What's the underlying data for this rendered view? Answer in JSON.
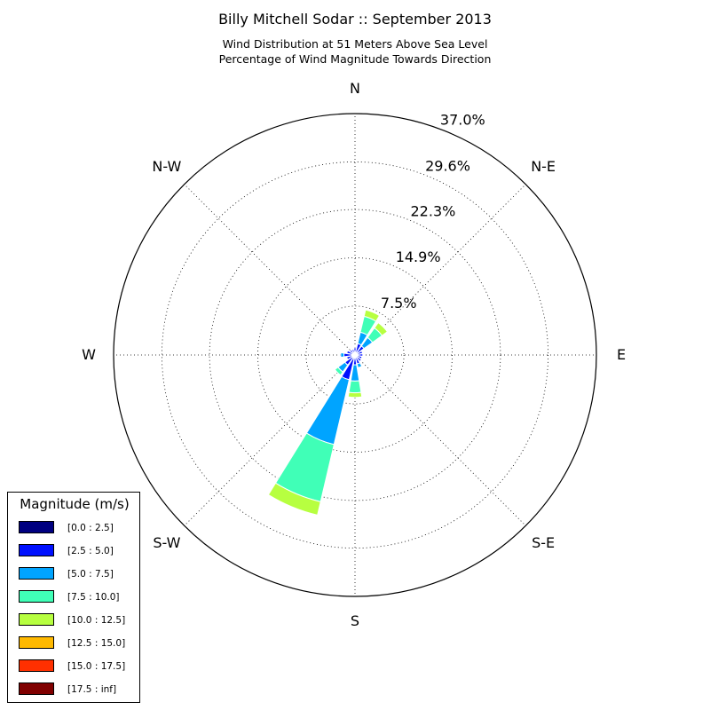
{
  "title": "Billy Mitchell Sodar :: September 2013",
  "subtitle_line1": "Wind Distribution at 51 Meters Above Sea Level",
  "subtitle_line2": "Percentage of Wind Magnitude Towards Direction",
  "chart_data": {
    "type": "windrose",
    "directions": [
      "N",
      "NNE",
      "NE",
      "ENE",
      "E",
      "ESE",
      "SE",
      "SSE",
      "S",
      "SSW",
      "SW",
      "WSW",
      "W",
      "WNW",
      "NW",
      "NNW"
    ],
    "direction_labels": [
      "N",
      "N-E",
      "E",
      "S-E",
      "S",
      "S-W",
      "W",
      "N-W"
    ],
    "radial_ticks": [
      "7.5%",
      "14.9%",
      "22.3%",
      "29.6%",
      "37.0%"
    ],
    "radial_tick_values": [
      7.5,
      14.9,
      22.3,
      29.6,
      37.0
    ],
    "rmax": 37.0,
    "grid": true,
    "bins": [
      "[0.0 : 2.5]",
      "[2.5 : 5.0]",
      "[5.0 : 7.5]",
      "[7.5 : 10.0]",
      "[10.0 : 12.5]",
      "[12.5 : 15.0]",
      "[15.0 : 17.5]",
      "[17.5 : inf]"
    ],
    "bin_colors": [
      "#000080",
      "#0010ff",
      "#00a4ff",
      "#40ffb7",
      "#b7ff40",
      "#ffb900",
      "#ff3000",
      "#800000"
    ],
    "series": [
      {
        "direction": "N",
        "values": [
          0.3,
          0.8,
          0.0,
          0.0,
          0.0,
          0.0,
          0.0,
          0.0
        ]
      },
      {
        "direction": "NNE",
        "values": [
          0.4,
          1.4,
          1.8,
          2.5,
          1.0,
          0.0,
          0.0,
          0.0
        ]
      },
      {
        "direction": "NE",
        "values": [
          0.4,
          1.3,
          1.6,
          1.8,
          1.0,
          0.0,
          0.0,
          0.0
        ]
      },
      {
        "direction": "ENE",
        "values": [
          0.4,
          0.8,
          0.0,
          0.0,
          0.0,
          0.0,
          0.0,
          0.0
        ]
      },
      {
        "direction": "E",
        "values": [
          0.4,
          0.8,
          0.0,
          0.0,
          0.0,
          0.0,
          0.0,
          0.0
        ]
      },
      {
        "direction": "ESE",
        "values": [
          0.4,
          0.7,
          0.0,
          0.0,
          0.0,
          0.0,
          0.0,
          0.0
        ]
      },
      {
        "direction": "SE",
        "values": [
          0.4,
          0.8,
          0.0,
          0.0,
          0.0,
          0.0,
          0.0,
          0.0
        ]
      },
      {
        "direction": "SSE",
        "values": [
          0.4,
          1.0,
          0.6,
          0.0,
          0.0,
          0.0,
          0.0,
          0.0
        ]
      },
      {
        "direction": "S",
        "values": [
          0.4,
          1.1,
          2.5,
          1.8,
          0.7,
          0.0,
          0.0,
          0.0
        ]
      },
      {
        "direction": "SSW",
        "values": [
          0.6,
          3.3,
          10.2,
          9.0,
          2.1,
          0.0,
          0.0,
          0.0
        ]
      },
      {
        "direction": "SW",
        "values": [
          0.5,
          1.4,
          1.3,
          0.6,
          0.0,
          0.0,
          0.0,
          0.0
        ]
      },
      {
        "direction": "WSW",
        "values": [
          0.5,
          0.8,
          0.0,
          0.0,
          0.0,
          0.0,
          0.0,
          0.0
        ]
      },
      {
        "direction": "W",
        "values": [
          0.5,
          1.2,
          0.5,
          0.0,
          0.0,
          0.0,
          0.0,
          0.0
        ]
      },
      {
        "direction": "WNW",
        "values": [
          0.4,
          0.9,
          0.0,
          0.0,
          0.0,
          0.0,
          0.0,
          0.0
        ]
      },
      {
        "direction": "NW",
        "values": [
          0.4,
          0.6,
          0.0,
          0.0,
          0.0,
          0.0,
          0.0,
          0.0
        ]
      },
      {
        "direction": "NNW",
        "values": [
          0.3,
          0.6,
          0.0,
          0.0,
          0.0,
          0.0,
          0.0,
          0.0
        ]
      }
    ]
  },
  "legend": {
    "title": "Magnitude (m/s)",
    "entries": [
      "[0.0 : 2.5]",
      "[2.5 : 5.0]",
      "[5.0 : 7.5]",
      "[7.5 : 10.0]",
      "[10.0 : 12.5]",
      "[12.5 : 15.0]",
      "[15.0 : 17.5]",
      "[17.5 : inf]"
    ]
  }
}
